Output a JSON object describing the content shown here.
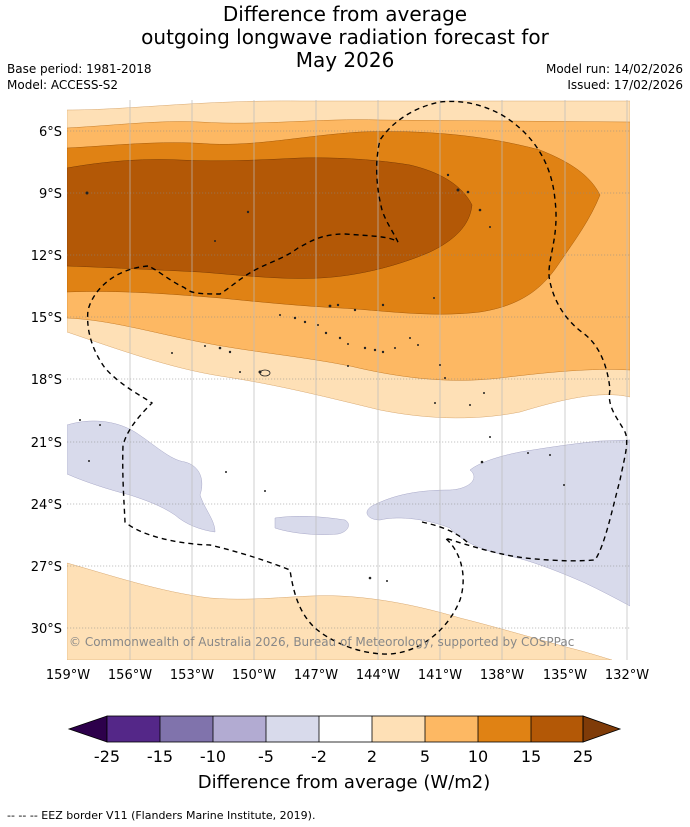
{
  "title": {
    "line1": "Difference from average",
    "line2": "outgoing longwave radiation forecast for",
    "line3": "May 2026"
  },
  "meta": {
    "base_period": "Base period: 1981-2018",
    "model": "Model: ACCESS-S2",
    "model_run": "Model run: 14/02/2026",
    "issued": "Issued: 17/02/2026"
  },
  "map": {
    "lat_labels": [
      "6°S",
      "9°S",
      "12°S",
      "15°S",
      "18°S",
      "21°S",
      "24°S",
      "27°S",
      "30°S"
    ],
    "lon_labels": [
      "159°W",
      "156°W",
      "153°W",
      "150°W",
      "147°W",
      "144°W",
      "141°W",
      "138°W",
      "135°W",
      "132°W"
    ],
    "credit": "© Commonwealth of Australia 2026, Bureau of Meteorology, supported by COSPPac"
  },
  "colorbar": {
    "ticks": [
      "-25",
      "-15",
      "-10",
      "-5",
      "-2",
      "2",
      "5",
      "10",
      "15",
      "25"
    ],
    "label": "Difference from average (W/m2)",
    "colors": {
      "below_min": "#2d004b",
      "bins": [
        "#542788",
        "#8073ac",
        "#b2abd2",
        "#d8daeb",
        "#ffffff",
        "#fee0b6",
        "#fdb863",
        "#e08214",
        "#b35806"
      ],
      "above_max": "#7f3b08"
    }
  },
  "footer": {
    "legend": "--  --  -- EEZ border V11 (Flanders Marine Institute, 2019)."
  }
}
